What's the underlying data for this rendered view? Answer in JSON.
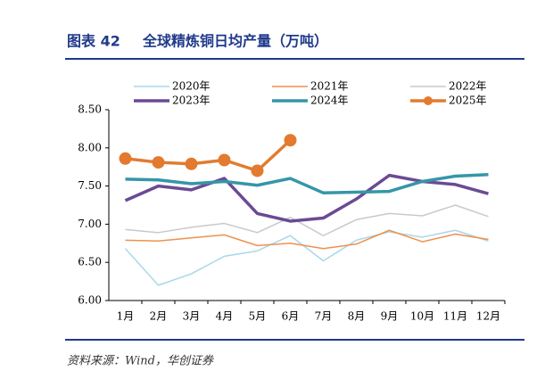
{
  "chart_data": {
    "type": "line",
    "figure_label": "图表 42",
    "title": "全球精炼铜日均产量（万吨）",
    "source": "资料来源：Wind，华创证券",
    "categories": [
      "1月",
      "2月",
      "3月",
      "4月",
      "5月",
      "6月",
      "7月",
      "8月",
      "9月",
      "10月",
      "11月",
      "12月"
    ],
    "series": [
      {
        "name": "2020年",
        "color": "#a8d8ea",
        "line_width": 1.5,
        "marker": false,
        "values": [
          6.68,
          6.2,
          6.35,
          6.58,
          6.65,
          6.85,
          6.52,
          6.79,
          6.9,
          6.83,
          6.92,
          6.78
        ]
      },
      {
        "name": "2021年",
        "color": "#ee914e",
        "line_width": 1.5,
        "marker": false,
        "values": [
          6.79,
          6.78,
          6.82,
          6.86,
          6.72,
          6.75,
          6.68,
          6.74,
          6.92,
          6.77,
          6.87,
          6.8
        ]
      },
      {
        "name": "2022年",
        "color": "#c9c9c9",
        "line_width": 1.5,
        "marker": false,
        "values": [
          6.93,
          6.89,
          6.96,
          7.01,
          6.89,
          7.09,
          6.85,
          7.06,
          7.14,
          7.11,
          7.25,
          7.1
        ]
      },
      {
        "name": "2023年",
        "color": "#6b4a94",
        "line_width": 3.5,
        "marker": false,
        "values": [
          7.31,
          7.5,
          7.45,
          7.6,
          7.14,
          7.04,
          7.08,
          7.33,
          7.64,
          7.56,
          7.52,
          7.4
        ]
      },
      {
        "name": "2024年",
        "color": "#3596a8",
        "line_width": 3.5,
        "marker": false,
        "values": [
          7.59,
          7.58,
          7.53,
          7.56,
          7.51,
          7.6,
          7.41,
          7.42,
          7.43,
          7.56,
          7.63,
          7.65
        ]
      },
      {
        "name": "2025年",
        "color": "#e27b2f",
        "line_width": 3.5,
        "marker": true,
        "values": [
          7.86,
          7.81,
          7.79,
          7.84,
          7.7,
          8.1,
          null,
          null,
          null,
          null,
          null,
          null
        ]
      }
    ],
    "ylim": [
      6.0,
      8.5
    ],
    "yticks": [
      {
        "value": 6.0,
        "label": "6.00"
      },
      {
        "value": 6.5,
        "label": "6.50"
      },
      {
        "value": 7.0,
        "label": "7.00"
      },
      {
        "value": 7.5,
        "label": "7.50"
      },
      {
        "value": 8.0,
        "label": "8.00"
      },
      {
        "value": 8.5,
        "label": "8.50"
      }
    ],
    "grid": false
  }
}
